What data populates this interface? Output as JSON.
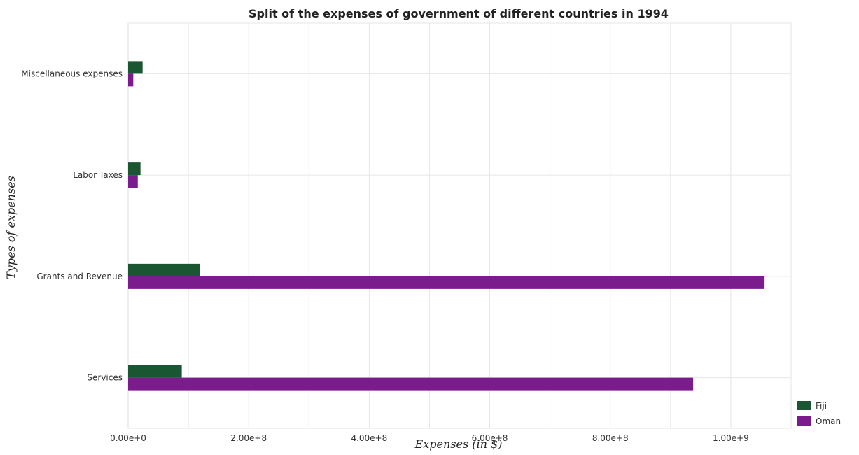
{
  "chart_data": {
    "type": "bar",
    "orientation": "horizontal",
    "title": "Split of the expenses of government of different countries in 1994",
    "xlabel": "Expenses (in $)",
    "ylabel": "Types of expenses",
    "categories": [
      "Miscellaneous expenses",
      "Labor Taxes",
      "Grants and Revenue",
      "Services"
    ],
    "series": [
      {
        "name": "Fiji",
        "color": "#1a5632",
        "values": [
          24000000,
          20500000,
          119000000,
          89000000
        ]
      },
      {
        "name": "Oman",
        "color": "#7a1c8c",
        "values": [
          8500000,
          16000000,
          1056000000,
          937500000
        ]
      }
    ],
    "xlim": [
      0,
      1100000000
    ],
    "xticks": [
      0,
      200000000,
      400000000,
      600000000,
      800000000,
      1000000000
    ],
    "xtick_labels": [
      "0.00e+0",
      "2.00e+8",
      "4.00e+8",
      "6.00e+8",
      "8.00e+8",
      "1.00e+9"
    ],
    "grid": true,
    "legend_position": "bottom-right"
  }
}
